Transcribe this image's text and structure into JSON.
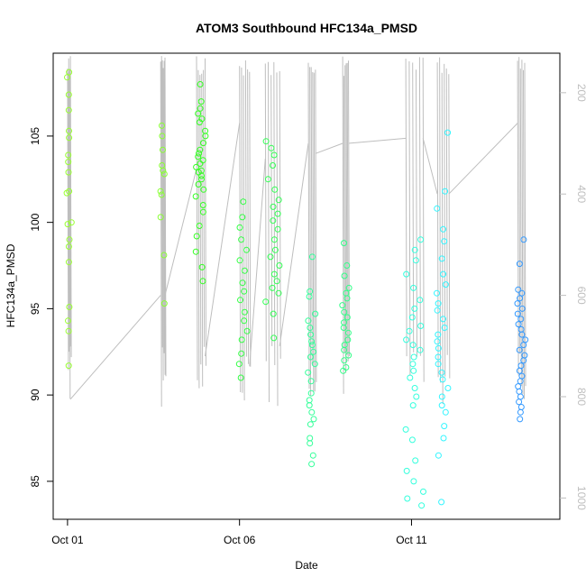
{
  "chart_data": {
    "type": "scatter",
    "title": "ATOM3 Southbound HFC134a_PMSD",
    "xlabel": "Date",
    "ylabel": "HFC134a_PMSD",
    "xlim": [
      "2016-09-30T14:00",
      "2016-10-15T07:30"
    ],
    "ylim": [
      82.8,
      109.8
    ],
    "x_ticks": [
      {
        "date": "2016-10-01T00:00",
        "label": "Oct 01"
      },
      {
        "date": "2016-10-06T00:00",
        "label": "Oct 06"
      },
      {
        "date": "2016-10-11T00:00",
        "label": "Oct 11"
      }
    ],
    "y_ticks": [
      85,
      90,
      95,
      100,
      105
    ],
    "y2": {
      "quantity": "pressure (hPa), grey trace",
      "inverted": true,
      "lim": [
        122,
        1042
      ],
      "ticks": [
        200,
        400,
        600,
        800,
        1000
      ]
    },
    "trace_color": "#bebebe",
    "point_color_scale": "rainbow hue by time: yellow-green (Oct 1) to blue (Oct 14)",
    "series": [
      {
        "x_start": "2016-10-01T00:00",
        "x_end": "2016-10-01T02:00",
        "y": [
          108.7,
          108.4,
          107.4,
          106.5,
          105.3,
          104.9,
          103.9,
          103.5,
          102.9,
          101.8,
          101.7,
          100.0,
          99.9,
          99.0,
          98.6,
          97.7,
          95.1,
          94.3,
          93.7,
          91.7
        ],
        "color": "#99ff33"
      },
      {
        "x_start": "2016-10-03T17:00",
        "x_end": "2016-10-03T20:00",
        "y": [
          105.6,
          105.0,
          104.2,
          103.3,
          103.0,
          102.8,
          101.8,
          101.6,
          100.3,
          98.1,
          95.3
        ],
        "color": "#88ff33"
      },
      {
        "x_start": "2016-10-04T18:00",
        "x_end": "2016-10-05T00:00",
        "y": [
          108.0,
          107.0,
          106.6,
          106.3,
          106.0,
          105.8,
          105.3,
          105.0,
          104.6,
          104.2,
          104.0,
          103.8,
          103.6,
          103.4,
          103.2,
          103.0,
          102.9,
          102.7,
          102.5,
          102.2,
          101.9,
          101.5,
          101.0,
          100.6,
          99.8,
          99.2,
          98.3,
          97.4,
          96.6
        ],
        "color": "#33ff22"
      },
      {
        "x_start": "2016-10-06T00:00",
        "x_end": "2016-10-06T07:00",
        "y": [
          101.2,
          100.3,
          99.7,
          99.0,
          98.4,
          97.8,
          97.2,
          96.5,
          96.0,
          95.5,
          94.8,
          94.3,
          93.7,
          93.2,
          92.4,
          91.8,
          91.0
        ],
        "color": "#33ff44"
      },
      {
        "x_start": "2016-10-06T18:00",
        "x_end": "2016-10-07T04:00",
        "y": [
          104.7,
          104.3,
          103.9,
          103.3,
          102.5,
          101.9,
          101.3,
          100.9,
          100.5,
          100.1,
          99.6,
          99.0,
          98.4,
          98.0,
          97.5,
          97.0,
          96.6,
          96.2,
          95.9,
          95.4,
          94.7,
          93.3
        ],
        "color": "#33ff55"
      },
      {
        "x_start": "2016-10-08T00:00",
        "x_end": "2016-10-08T05:00",
        "y": [
          98.0,
          96.0,
          95.7,
          94.7,
          94.3,
          93.9,
          93.5,
          93.1,
          92.9,
          92.5,
          92.2,
          91.8,
          91.3,
          90.8,
          90.1,
          89.7,
          89.4,
          89.0,
          88.6,
          88.3,
          87.5,
          87.2,
          86.5,
          86.0
        ],
        "color": "#33ff99"
      },
      {
        "x_start": "2016-10-09T00:00",
        "x_end": "2016-10-09T04:00",
        "y": [
          98.8,
          97.5,
          96.9,
          96.2,
          95.9,
          95.6,
          95.2,
          94.8,
          94.5,
          94.2,
          93.9,
          93.6,
          93.2,
          92.9,
          92.6,
          92.3,
          92.0,
          91.6,
          91.4
        ],
        "color": "#33ff88"
      },
      {
        "x_start": "2016-10-10T20:00",
        "x_end": "2016-10-11T08:00",
        "y": [
          99.0,
          98.4,
          97.8,
          97.0,
          96.2,
          95.5,
          95.0,
          94.5,
          94.0,
          93.7,
          93.2,
          92.9,
          92.6,
          92.2,
          91.8,
          91.4,
          91.0,
          90.4,
          89.9,
          89.4,
          88.0,
          87.4,
          86.2,
          85.6,
          85.0,
          84.4,
          84.0,
          83.6
        ],
        "color": "#33ffdd"
      },
      {
        "x_start": "2016-10-11T18:00",
        "x_end": "2016-10-12T02:00",
        "y": [
          105.2,
          101.8,
          100.8,
          99.6,
          98.9,
          97.9,
          97.0,
          96.4,
          95.9,
          95.3,
          94.9,
          94.4,
          93.9,
          93.5,
          93.1,
          92.7,
          92.2,
          91.8,
          91.3,
          90.9,
          90.4,
          89.9,
          89.4,
          89.0,
          88.2,
          87.5,
          86.5,
          83.8
        ],
        "color": "#33f5ff"
      },
      {
        "x_start": "2016-10-14T02:00",
        "x_end": "2016-10-14T07:00",
        "y": [
          99.0,
          97.6,
          96.1,
          95.9,
          95.6,
          95.3,
          95.0,
          94.7,
          94.4,
          94.1,
          93.8,
          93.5,
          93.2,
          92.9,
          92.6,
          92.3,
          92.0,
          91.7,
          91.4,
          91.1,
          90.8,
          90.5,
          90.2,
          89.9,
          89.6,
          89.3,
          89.0,
          88.6
        ],
        "color": "#3399ff"
      }
    ]
  }
}
